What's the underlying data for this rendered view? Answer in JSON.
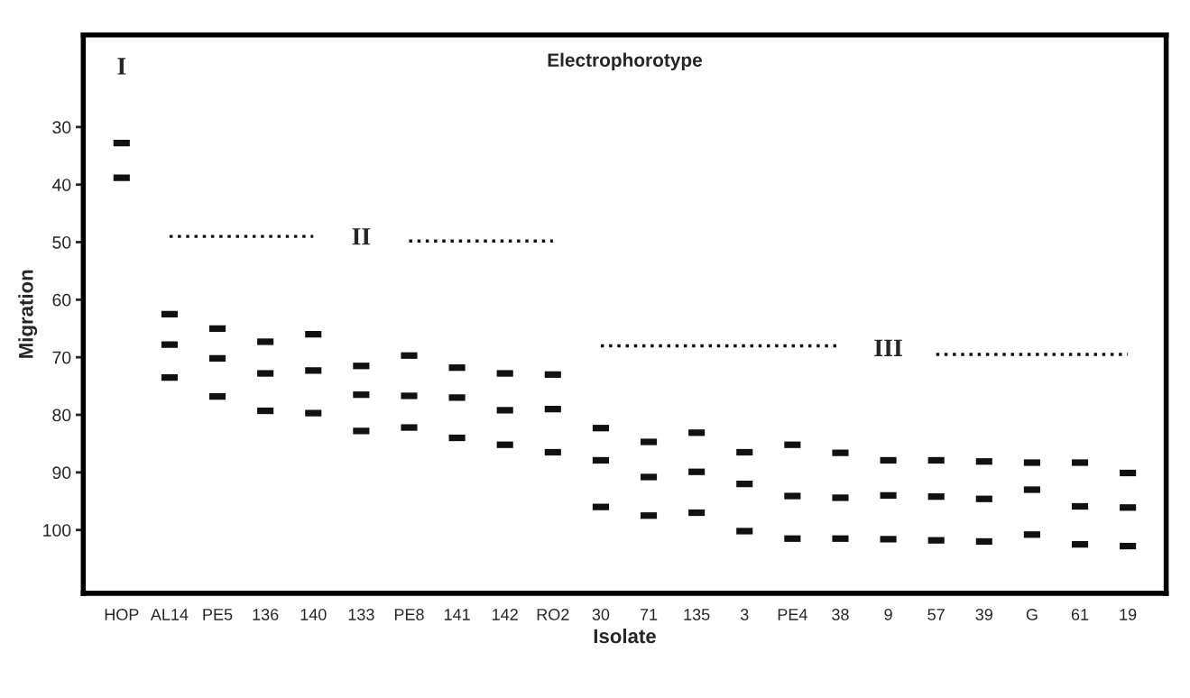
{
  "chart_data": {
    "type": "scatter",
    "title": "Electrophorotype",
    "xlabel": "Isolate",
    "ylabel": "Migration",
    "categories": [
      "HOP",
      "AL14",
      "PE5",
      "136",
      "140",
      "133",
      "PE8",
      "141",
      "142",
      "RO2",
      "30",
      "71",
      "135",
      "3",
      "PE4",
      "38",
      "9",
      "57",
      "39",
      "G",
      "61",
      "19"
    ],
    "series": [
      {
        "color": "#111111",
        "values": [
          32.8,
          62.5,
          65,
          67.3,
          66,
          71.5,
          69.7,
          71.8,
          72.8,
          73,
          82.3,
          84.7,
          83.1,
          86.5,
          85.2,
          86.6,
          87.9,
          87.9,
          88.1,
          88.3,
          88.3,
          90.1
        ]
      },
      {
        "color": "#111111",
        "values": [
          38.8,
          67.8,
          70.2,
          72.8,
          72.3,
          76.5,
          76.7,
          77,
          79.2,
          79,
          87.9,
          90.8,
          89.9,
          92,
          94.1,
          94.4,
          94,
          94.2,
          94.6,
          93,
          95.9,
          96.1
        ]
      },
      {
        "color": "#111111",
        "values": [
          null,
          73.5,
          76.8,
          79.3,
          79.7,
          82.8,
          82.2,
          84,
          85.2,
          86.5,
          96,
          97.5,
          97,
          100.2,
          101.5,
          101.5,
          101.6,
          101.8,
          102,
          100.8,
          102.5,
          102.8
        ]
      },
      {
        "type": "line",
        "name": "II",
        "line_style": "dotted",
        "color": "#111111",
        "values": [
          null,
          49,
          49,
          49,
          49,
          null,
          49.8,
          49.8,
          49.8,
          49.8,
          null,
          null,
          null,
          null,
          null,
          null,
          null,
          null,
          null,
          null,
          null,
          null
        ]
      },
      {
        "type": "line",
        "name": "III",
        "line_style": "dotted",
        "color": "#111111",
        "values": [
          null,
          null,
          null,
          null,
          null,
          null,
          null,
          null,
          null,
          null,
          68,
          68,
          68,
          68,
          68,
          68,
          null,
          69.5,
          69.5,
          69.5,
          69.5,
          69.5
        ]
      }
    ],
    "annotations": [
      "I"
    ],
    "ylim": [
      111,
      14
    ],
    "yticks": [
      30,
      40,
      50,
      60,
      70,
      80,
      90,
      100
    ],
    "grid": false,
    "legend": false
  }
}
